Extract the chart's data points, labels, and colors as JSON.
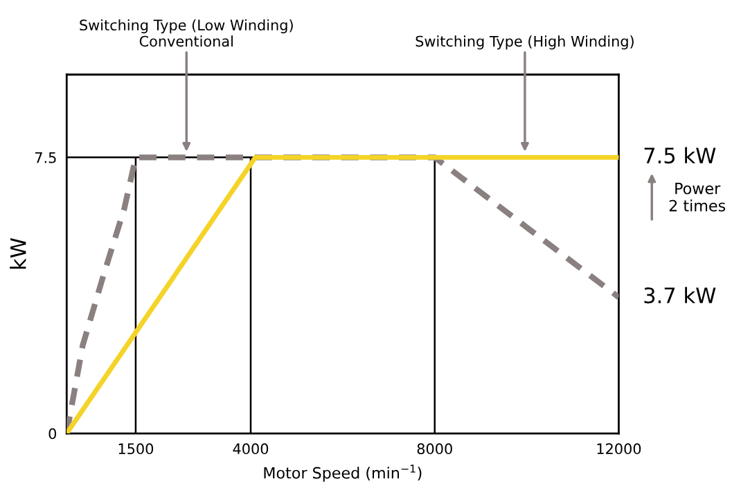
{
  "chart_data": {
    "type": "line",
    "xlabel": "Motor Speed (min$^{−1}$)",
    "ylabel": "kW",
    "xlim": [
      0,
      12000
    ],
    "xticks": [
      1500,
      4000,
      8000,
      12000
    ],
    "ylim": [
      0,
      9.75
    ],
    "yticks": [
      0,
      7.5
    ],
    "series": [
      {
        "color": "#8a8080",
        "line_style": "dashed",
        "x": [
          0,
          350,
          800,
          1250,
          1500,
          8000,
          12000
        ],
        "values": [
          0,
          2.4,
          4.3,
          6.1,
          7.5,
          7.5,
          3.7
        ]
      },
      {
        "color": "#f5d327",
        "line_style": "solid",
        "x": [
          0,
          4100,
          12000
        ],
        "values": [
          0,
          7.5,
          7.5
        ]
      }
    ],
    "ref_lines": [
      {
        "axis": "y",
        "value": 7.5,
        "color": "#000000"
      },
      {
        "axis": "x",
        "value": 1500,
        "color": "#000000"
      },
      {
        "axis": "x",
        "value": 4000,
        "color": "#000000"
      },
      {
        "axis": "x",
        "value": 8000,
        "color": "#000000"
      }
    ],
    "annotations": [
      "Switching Type (Low Winding)\nConventional",
      "Switching Type (High Winding)",
      {
        "text": "7.5 kW",
        "x": 12000,
        "y": 7.5
      },
      {
        "text": "3.7 kW",
        "x": 12000,
        "y": 3.7
      },
      "Power\n2 times"
    ],
    "grid": false,
    "legend": false
  }
}
